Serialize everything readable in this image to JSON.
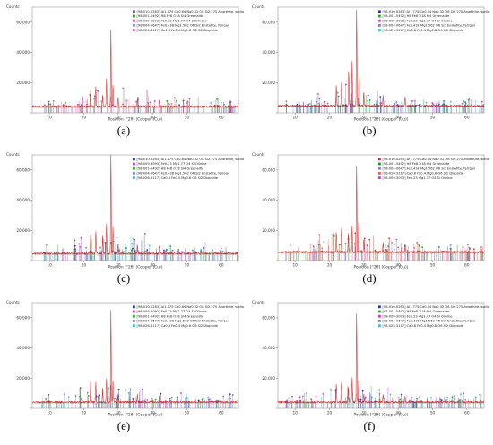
{
  "figure": {
    "common": {
      "ylabel": "Counts",
      "xlabel": "Position [°2θ] (Copper (Cu))",
      "xticks": [
        10,
        20,
        30,
        40,
        50,
        60
      ],
      "xlim": [
        5,
        65
      ],
      "ylim": [
        0,
        70000
      ],
      "yticks": [
        0,
        20000,
        40000,
        60000
      ],
      "ytick_labels": [
        "",
        "20,000",
        "40,000",
        "60,000"
      ]
    }
  },
  "chart_data": [
    {
      "type": "line",
      "caption": "(a)",
      "xlabel": "Position [°2θ] (Copper (Cu))",
      "ylabel": "Counts",
      "xlim": [
        5,
        65
      ],
      "ylim": [
        0,
        70000
      ],
      "legend_position": "top-right",
      "legend": [
        {
          "text": "[98-010-0283] Al1.775 Ca0.64 Na0.32 O8 Si2.275 Anorthite, sodian",
          "color": "#5a5a9a"
        },
        {
          "text": "[98-001-5492] H8 Fe8 O18 Si4 Greenalite",
          "color": "#2a8a2a"
        },
        {
          "text": "[98-009-3093] Fe0.23 Mg1.77 O4 Si Olivine",
          "color": "#d04090"
        },
        {
          "text": "[98-004-0647] Fe0.438 Mg1.562 O6 Si2 Enstatite, ferroan",
          "color": "#9090c0"
        },
        {
          "text": "[98-026-3117] Ca0.8 Fe0.4 Mg0.8 O6 Si2 Diopside",
          "color": "#e060a0"
        }
      ],
      "peaks": [
        [
          22,
          12000
        ],
        [
          23.5,
          14000
        ],
        [
          25.5,
          8000
        ],
        [
          26.6,
          19000
        ],
        [
          27.9,
          52000
        ],
        [
          28.5,
          15000
        ],
        [
          30,
          6000
        ],
        [
          35.6,
          5000
        ],
        [
          42,
          4500
        ]
      ],
      "baseline": 3500
    },
    {
      "type": "line",
      "caption": "(b)",
      "xlabel": "Position [°2θ] (Copper (Cu))",
      "ylabel": "Counts",
      "xlim": [
        5,
        65
      ],
      "ylim": [
        0,
        70000
      ],
      "legend_position": "top-right",
      "legend": [
        {
          "text": "[98-010-0283] Al1.775 Ca0.64 Na0.32 O8 Si2.275 Anorthite, sodian",
          "color": "#3030a0"
        },
        {
          "text": "[98-001-5492] H8 Fe8 O18 Si4 Greenalite",
          "color": "#30a030"
        },
        {
          "text": "[98-009-3093] Fe0.23 Mg1.77 O4 Si Olivine",
          "color": "#c040c0"
        },
        {
          "text": "[98-004-0647] Fe0.438 Mg1.562 O6 Si2 Enstatite, ferroan",
          "color": "#8080c0"
        },
        {
          "text": "[98-026-3117] Ca0.8 Fe0.4 Mg0.8 O6 Si2 Diopside",
          "color": "#40c0c0"
        }
      ],
      "peaks": [
        [
          22,
          14000
        ],
        [
          23.5,
          16000
        ],
        [
          25.6,
          24000
        ],
        [
          26.6,
          30000
        ],
        [
          27.9,
          65000
        ],
        [
          28.6,
          20000
        ],
        [
          30,
          9000
        ],
        [
          35.6,
          7000
        ],
        [
          42,
          6000
        ]
      ],
      "baseline": 4000
    },
    {
      "type": "line",
      "caption": "(c)",
      "xlabel": "Position [°2θ] (Copper (Cu))",
      "ylabel": "Counts",
      "xlim": [
        5,
        65
      ],
      "ylim": [
        0,
        70000
      ],
      "legend_position": "top-right",
      "legend": [
        {
          "text": "[98-010-0283] Al1.775 Ca0.64 Na0.32 O8 Si2.275 Anorthite, sodian",
          "color": "#3030a0"
        },
        {
          "text": "[98-009-3093] Fe0.23 Mg1.77 O4 Si Olivine",
          "color": "#c040c0"
        },
        {
          "text": "[98-001-5492] H8 Fe8 O18 Si4 Greenalite",
          "color": "#30a030"
        },
        {
          "text": "[98-004-0647] Fe0.438 Mg1.562 O6 Si2 Enstatite, ferroan",
          "color": "#8080c0"
        },
        {
          "text": "[98-026-3117] Ca0.8 Fe0.4 Mg0.8 O6 Si2 Diopside",
          "color": "#40c0c0"
        }
      ],
      "peaks": [
        [
          22,
          13000
        ],
        [
          23.5,
          15000
        ],
        [
          25.5,
          12000
        ],
        [
          26.6,
          20000
        ],
        [
          27.9,
          70000
        ],
        [
          28.5,
          18000
        ],
        [
          30,
          7000
        ],
        [
          35.6,
          6000
        ],
        [
          42,
          5000
        ]
      ],
      "baseline": 4000
    },
    {
      "type": "line",
      "caption": "(d)",
      "xlabel": "Position [°2θ] (Copper (Cu))",
      "ylabel": "Counts",
      "xlim": [
        5,
        65
      ],
      "ylim": [
        0,
        70000
      ],
      "legend_position": "top-right",
      "legend": [
        {
          "text": "[98-010-0283] Al1.775 Ca0.64 Na0.32 O8 Si2.275 Anorthite, sodian",
          "color": "#c04040"
        },
        {
          "text": "[98-001-5492] H8 Fe8 O18 Si4 Greenalite",
          "color": "#2a8a2a"
        },
        {
          "text": "[98-004-0647] Fe0.438 Mg1.562 O6 Si2 Enstatite, ferroan",
          "color": "#8080c0"
        },
        {
          "text": "[98-026-3117] Ca0.8 Fe0.4 Mg0.8 O6 Si2 Diopside",
          "color": "#e06060"
        },
        {
          "text": "[98-009-3093] Fe0.23 Mg1.77 O4 Si Olivine",
          "color": "#c040c0"
        }
      ],
      "peaks": [
        [
          22,
          14000
        ],
        [
          23.5,
          16000
        ],
        [
          25.5,
          13000
        ],
        [
          26.6,
          18000
        ],
        [
          27.9,
          58000
        ],
        [
          28.5,
          20000
        ],
        [
          30,
          9000
        ],
        [
          35.6,
          7000
        ],
        [
          42,
          6000
        ]
      ],
      "baseline": 5000
    },
    {
      "type": "line",
      "caption": "(e)",
      "xlabel": "Position [°2θ] (Copper (Cu))",
      "ylabel": "Counts",
      "xlim": [
        5,
        65
      ],
      "ylim": [
        0,
        70000
      ],
      "legend_position": "top-right",
      "legend": [
        {
          "text": "[98-010-0283] Al1.775 Ca0.64 Na0.32 O8 Si2.275 Anorthite, sodian",
          "color": "#3030a0"
        },
        {
          "text": "[98-009-3093] Fe0.23 Mg1.77 O4 Si Olivine",
          "color": "#c040c0"
        },
        {
          "text": "[98-001-5492] H8 Fe8 O18 Si4 Greenalite",
          "color": "#30a030"
        },
        {
          "text": "[98-004-0647] Fe0.438 Mg1.562 O6 Si2 Enstatite, ferroan",
          "color": "#8080c0"
        },
        {
          "text": "[98-026-3117] Ca0.8 Fe0.4 Mg0.8 O6 Si2 Diopside",
          "color": "#40c0c0"
        }
      ],
      "peaks": [
        [
          22,
          15000
        ],
        [
          23.5,
          13000
        ],
        [
          25.5,
          9000
        ],
        [
          26.6,
          16000
        ],
        [
          27.9,
          62000
        ],
        [
          28.5,
          14000
        ],
        [
          30,
          6000
        ],
        [
          35.6,
          5000
        ],
        [
          42,
          4500
        ]
      ],
      "baseline": 3500
    },
    {
      "type": "line",
      "caption": "(f)",
      "xlabel": "Position [°2θ] (Copper (Cu))",
      "ylabel": "Counts",
      "xlim": [
        5,
        65
      ],
      "ylim": [
        0,
        70000
      ],
      "legend_position": "top-right",
      "legend": [
        {
          "text": "[98-010-0283] Al1.775 Ca0.64 Na0.32 O8 Si2.275 Anorthite, sodian",
          "color": "#3030a0"
        },
        {
          "text": "[98-001-5492] H8 Fe8 O18 Si4 Greenalite",
          "color": "#30a030"
        },
        {
          "text": "[98-009-3093] Fe0.23 Mg1.77 O4 Si Olivine",
          "color": "#c040c0"
        },
        {
          "text": "[98-004-0647] Fe0.438 Mg1.562 O6 Si2 Enstatite, ferroan",
          "color": "#8080c0"
        },
        {
          "text": "[98-026-3117] Ca0.8 Fe0.4 Mg0.8 O6 Si2 Diopside",
          "color": "#40c0c0"
        }
      ],
      "peaks": [
        [
          22,
          12000
        ],
        [
          23.5,
          14000
        ],
        [
          25.5,
          10000
        ],
        [
          26.6,
          17000
        ],
        [
          27.9,
          60000
        ],
        [
          28.5,
          15000
        ],
        [
          30,
          6000
        ],
        [
          35.6,
          5000
        ],
        [
          42,
          4500
        ]
      ],
      "baseline": 3500
    }
  ]
}
